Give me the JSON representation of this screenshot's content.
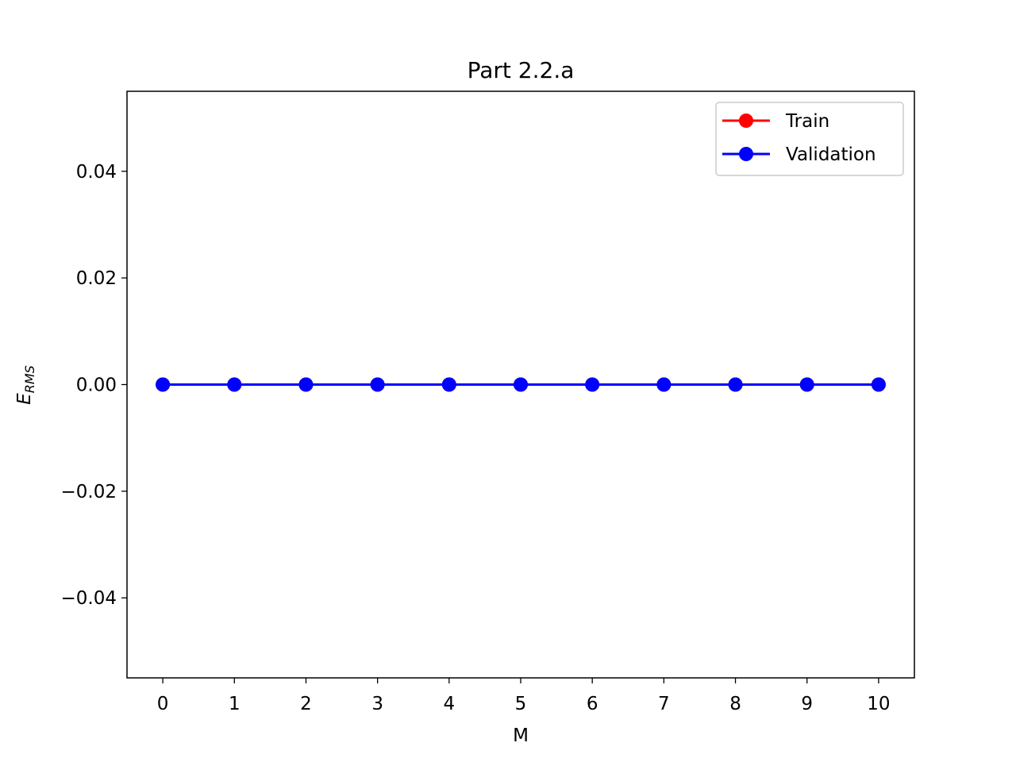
{
  "chart_data": {
    "type": "line",
    "title": "Part 2.2.a",
    "xlabel": "M",
    "ylabel": {
      "main": "E",
      "sub": "RMS"
    },
    "x": [
      0,
      1,
      2,
      3,
      4,
      5,
      6,
      7,
      8,
      9,
      10
    ],
    "x_ticks": [
      0,
      1,
      2,
      3,
      4,
      5,
      6,
      7,
      8,
      9,
      10
    ],
    "x_tick_labels": [
      "0",
      "1",
      "2",
      "3",
      "4",
      "5",
      "6",
      "7",
      "8",
      "9",
      "10"
    ],
    "xlim": [
      -0.5,
      10.5
    ],
    "ylim": [
      -0.055,
      0.055
    ],
    "y_ticks": [
      -0.04,
      -0.02,
      0.0,
      0.02,
      0.04
    ],
    "y_tick_labels": [
      "−0.04",
      "−0.02",
      "0.00",
      "0.02",
      "0.04"
    ],
    "grid": false,
    "legend_position": "top-right",
    "series": [
      {
        "name": "Train",
        "color": "#ff0000",
        "marker": "circle",
        "values": [
          0,
          0,
          0,
          0,
          0,
          0,
          0,
          0,
          0,
          0,
          0
        ]
      },
      {
        "name": "Validation",
        "color": "#0000ff",
        "marker": "circle",
        "values": [
          0,
          0,
          0,
          0,
          0,
          0,
          0,
          0,
          0,
          0,
          0
        ]
      }
    ]
  }
}
